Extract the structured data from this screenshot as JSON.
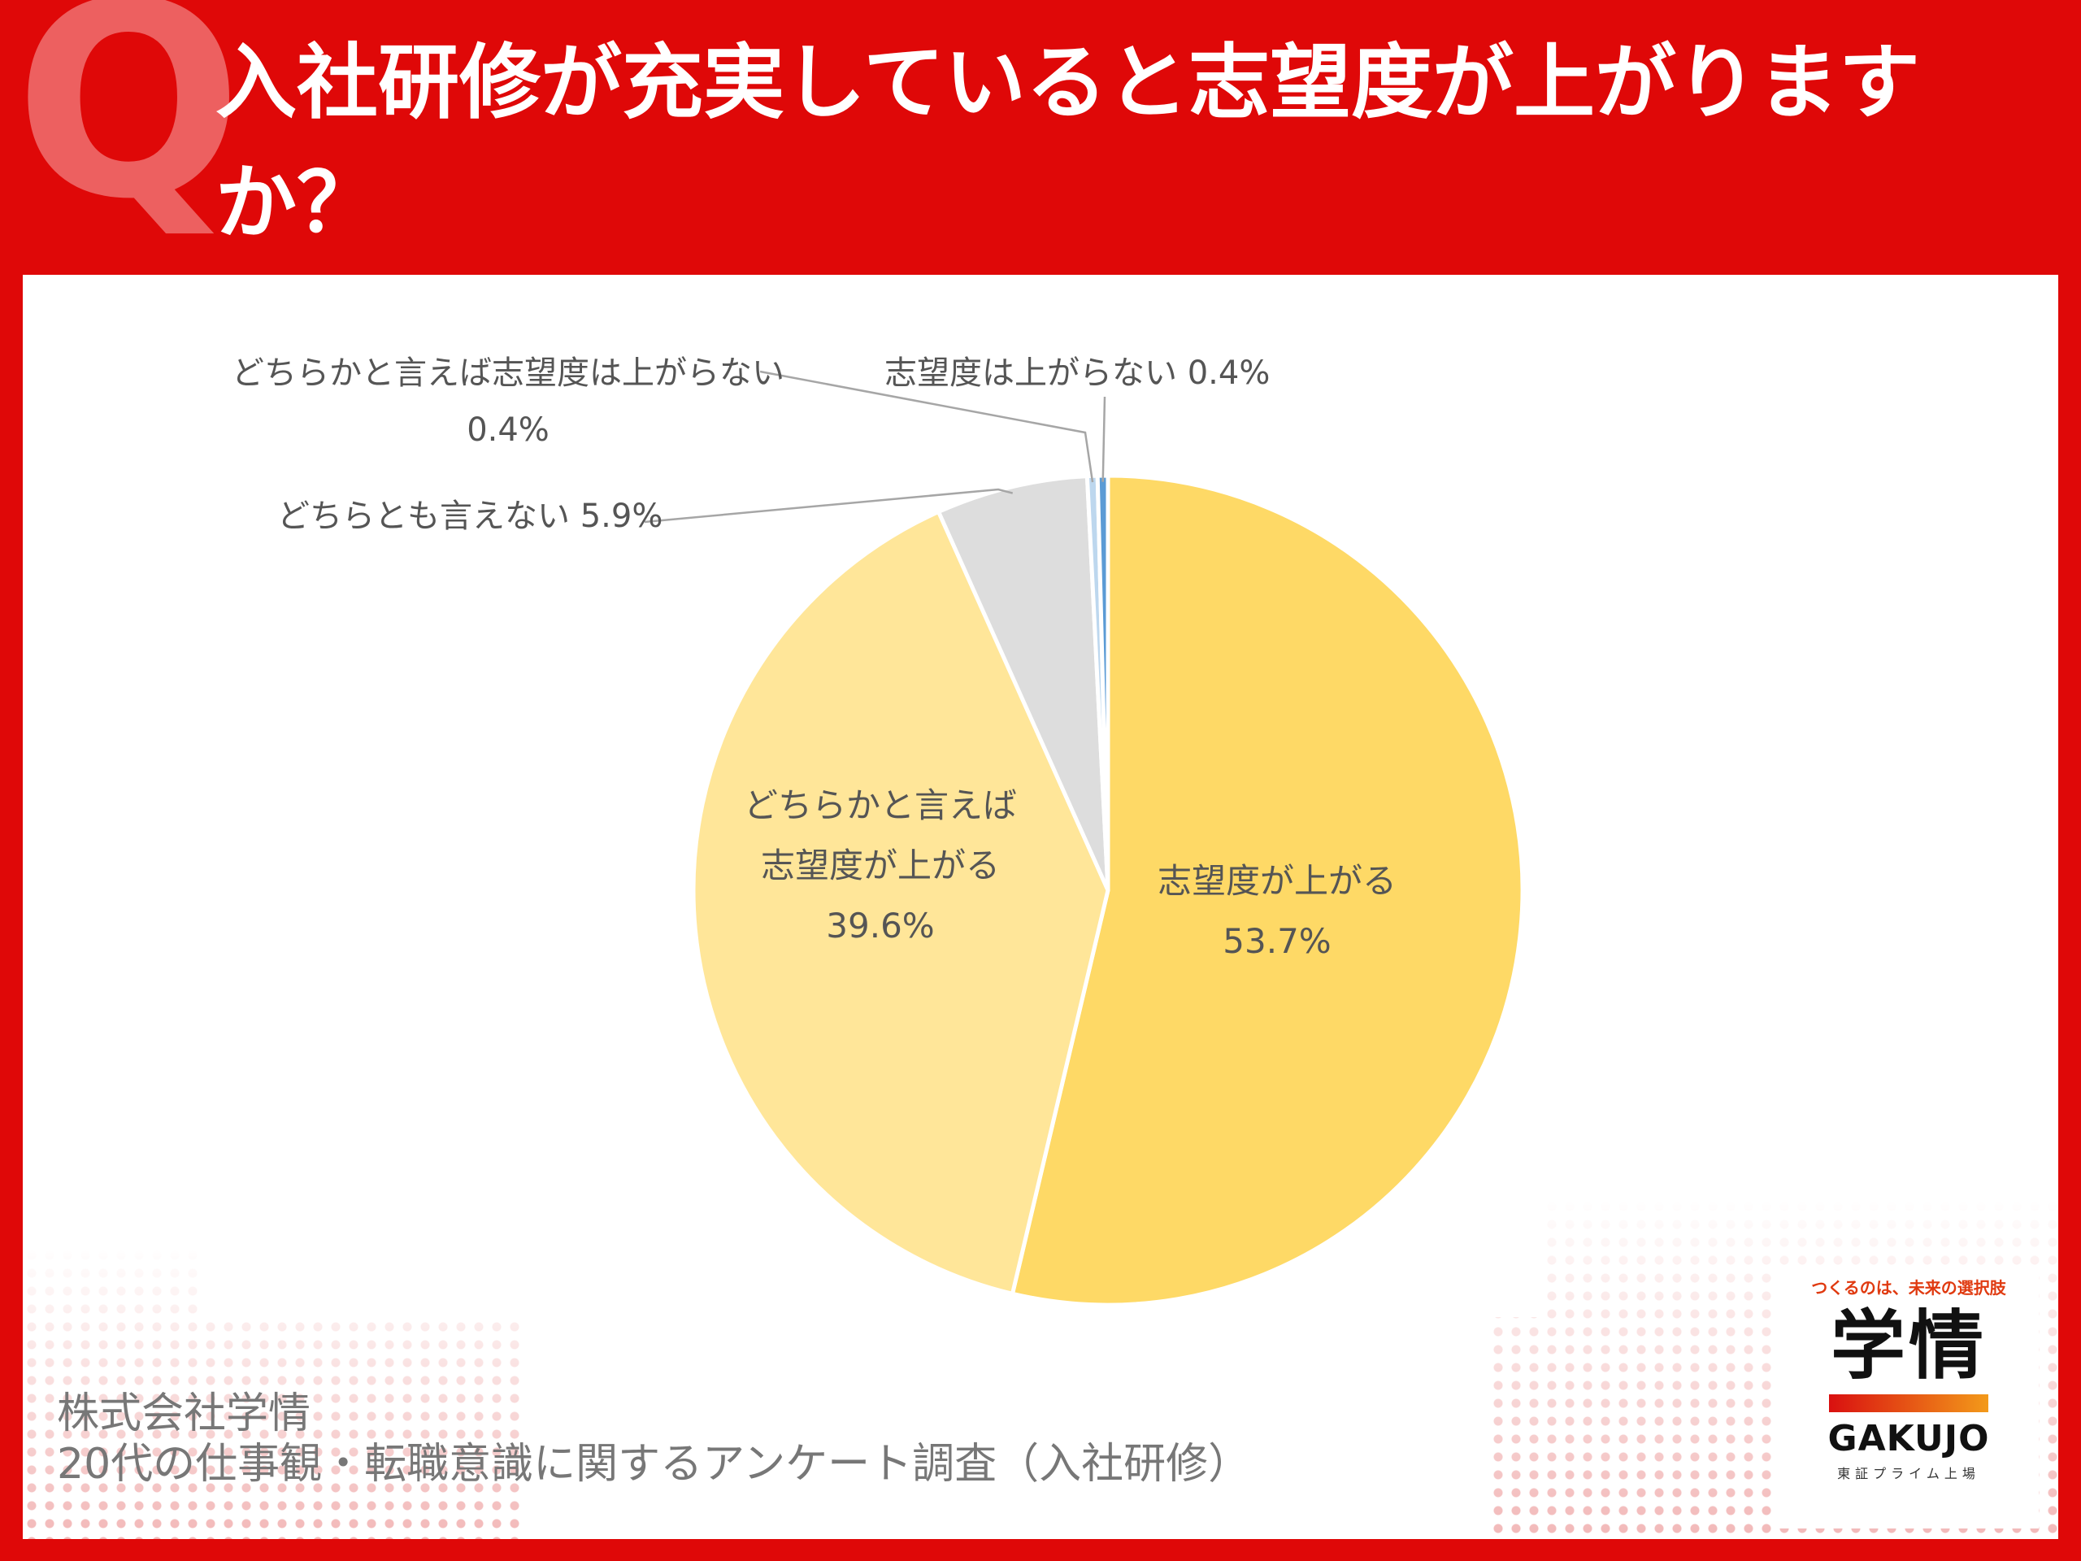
{
  "header": {
    "q_mark": "Q",
    "title": "入社研修が充実していると志望度が上がりますか？"
  },
  "chart_data": {
    "type": "pie",
    "title": "",
    "start_angle_deg": 0,
    "direction": "clockwise",
    "slices": [
      {
        "label": "志望度が上がる",
        "value": 53.7,
        "value_text": "53.7%",
        "color": "#fed966",
        "label_lines": [
          "志望度が上がる",
          "53.7%"
        ]
      },
      {
        "label": "どちらかと言えば志望度が上がる",
        "value": 39.6,
        "value_text": "39.6%",
        "color": "#ffe699",
        "label_lines": [
          "どちらかと言えば",
          "志望度が上がる",
          "39.6%"
        ]
      },
      {
        "label": "どちらとも言えない",
        "value": 5.9,
        "value_text": "5.9%",
        "color": "#dddddd",
        "label_lines": [
          "どちらとも言えない 5.9%"
        ]
      },
      {
        "label": "どちらかと言えば志望度は上がらない",
        "value": 0.4,
        "value_text": "0.4%",
        "color": "#bdd7ee",
        "label_lines": [
          "どちらかと言えば志望度は上がらない",
          "0.4%"
        ]
      },
      {
        "label": "志望度は上がらない",
        "value": 0.4,
        "value_text": "0.4%",
        "color": "#5b9bd5",
        "label_lines": [
          "志望度は上がらない 0.4%"
        ]
      }
    ]
  },
  "source": {
    "line1": "株式会社学情",
    "line2": "20代の仕事観・転職意識に関するアンケート調査（入社研修）"
  },
  "logo": {
    "tagline": "つくるのは、未来の選択肢",
    "kanji": "学情",
    "name": "GAKUJO",
    "sub": "東証プライム上場",
    "bar_colors": [
      "#d91010",
      "#f39a1a"
    ]
  }
}
